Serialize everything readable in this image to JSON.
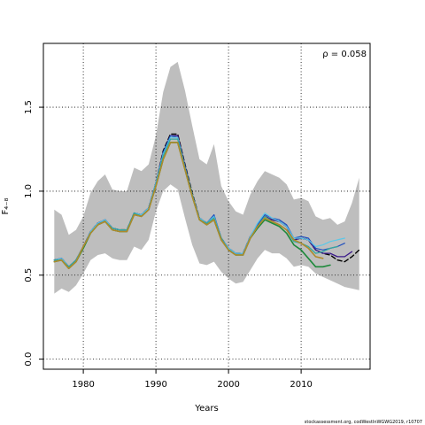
{
  "chart_data": {
    "type": "line",
    "xlabel": "Years",
    "ylabel": "F₄₋₈",
    "annotation": "ρ = 0.058",
    "footnote": "stockassessment.org, codWestInWGWG2019, r10707",
    "xlim": [
      1974.5,
      2019.5
    ],
    "ylim": [
      -0.06,
      1.88
    ],
    "x_ticks": [
      1980,
      1990,
      2000,
      2010
    ],
    "x_tick_labels": [
      "1980",
      "1990",
      "2000",
      "2010"
    ],
    "y_ticks": [
      0.0,
      0.5,
      1.0,
      1.5
    ],
    "y_tick_labels": [
      "0.0",
      "0.5",
      "1.0",
      "1.5"
    ],
    "grid": true,
    "confidence_band": {
      "x": [
        1976,
        1977,
        1978,
        1979,
        1980,
        1981,
        1982,
        1983,
        1984,
        1985,
        1986,
        1987,
        1988,
        1989,
        1990,
        1991,
        1992,
        1993,
        1994,
        1995,
        1996,
        1997,
        1998,
        1999,
        2000,
        2001,
        2002,
        2003,
        2004,
        2005,
        2006,
        2007,
        2008,
        2009,
        2010,
        2011,
        2012,
        2013,
        2014,
        2015,
        2016,
        2017,
        2018
      ],
      "upper": [
        0.89,
        0.86,
        0.74,
        0.77,
        0.85,
        0.99,
        1.06,
        1.1,
        1.01,
        1.0,
        1.0,
        1.14,
        1.12,
        1.16,
        1.33,
        1.59,
        1.74,
        1.77,
        1.6,
        1.39,
        1.19,
        1.16,
        1.28,
        1.03,
        0.94,
        0.88,
        0.86,
        0.98,
        1.06,
        1.12,
        1.1,
        1.08,
        1.04,
        0.95,
        0.96,
        0.94,
        0.85,
        0.83,
        0.84,
        0.8,
        0.82,
        0.93,
        1.08
      ],
      "lower": [
        0.39,
        0.42,
        0.4,
        0.44,
        0.51,
        0.59,
        0.62,
        0.63,
        0.6,
        0.59,
        0.59,
        0.67,
        0.65,
        0.71,
        0.88,
        1.0,
        1.04,
        1.01,
        0.84,
        0.68,
        0.57,
        0.56,
        0.58,
        0.52,
        0.48,
        0.45,
        0.46,
        0.53,
        0.6,
        0.65,
        0.63,
        0.63,
        0.6,
        0.55,
        0.56,
        0.55,
        0.51,
        0.49,
        0.47,
        0.45,
        0.43,
        0.42,
        0.41
      ]
    },
    "series": [
      {
        "color": "#000000",
        "dash": true,
        "width": 1.4,
        "x": [
          1976,
          1977,
          1978,
          1979,
          1980,
          1981,
          1982,
          1983,
          1984,
          1985,
          1986,
          1987,
          1988,
          1989,
          1990,
          1991,
          1992,
          1993,
          1994,
          1995,
          1996,
          1997,
          1998,
          1999,
          2000,
          2001,
          2002,
          2003,
          2004,
          2005,
          2006,
          2007,
          2008,
          2009,
          2010,
          2011,
          2012,
          2013,
          2014,
          2015,
          2016,
          2017,
          2018
        ],
        "values": [
          0.59,
          0.6,
          0.55,
          0.59,
          0.67,
          0.76,
          0.81,
          0.83,
          0.78,
          0.77,
          0.77,
          0.87,
          0.86,
          0.9,
          1.05,
          1.24,
          1.34,
          1.34,
          1.16,
          0.99,
          0.84,
          0.81,
          0.85,
          0.72,
          0.66,
          0.63,
          0.63,
          0.73,
          0.8,
          0.85,
          0.83,
          0.82,
          0.79,
          0.71,
          0.72,
          0.71,
          0.65,
          0.63,
          0.62,
          0.59,
          0.58,
          0.61,
          0.65
        ]
      },
      {
        "color": "#3b1a8a",
        "dash": false,
        "width": 1.3,
        "x": [
          1976,
          1977,
          1978,
          1979,
          1980,
          1981,
          1982,
          1983,
          1984,
          1985,
          1986,
          1987,
          1988,
          1989,
          1990,
          1991,
          1992,
          1993,
          1994,
          1995,
          1996,
          1997,
          1998,
          1999,
          2000,
          2001,
          2002,
          2003,
          2004,
          2005,
          2006,
          2007,
          2008,
          2009,
          2010,
          2011,
          2012,
          2013,
          2014,
          2015,
          2016,
          2017
        ],
        "values": [
          0.59,
          0.6,
          0.55,
          0.59,
          0.67,
          0.76,
          0.81,
          0.83,
          0.78,
          0.77,
          0.77,
          0.87,
          0.86,
          0.9,
          1.05,
          1.23,
          1.33,
          1.33,
          1.15,
          0.98,
          0.84,
          0.81,
          0.85,
          0.72,
          0.66,
          0.63,
          0.63,
          0.73,
          0.8,
          0.85,
          0.83,
          0.82,
          0.79,
          0.71,
          0.72,
          0.71,
          0.65,
          0.63,
          0.63,
          0.61,
          0.61,
          0.64
        ]
      },
      {
        "color": "#1f4fbf",
        "dash": false,
        "width": 1.2,
        "x": [
          1976,
          1977,
          1978,
          1979,
          1980,
          1981,
          1982,
          1983,
          1984,
          1985,
          1986,
          1987,
          1988,
          1989,
          1990,
          1991,
          1992,
          1993,
          1994,
          1995,
          1996,
          1997,
          1998,
          1999,
          2000,
          2001,
          2002,
          2003,
          2004,
          2005,
          2006,
          2007,
          2008,
          2009,
          2010,
          2011,
          2012,
          2013,
          2014,
          2015,
          2016
        ],
        "values": [
          0.59,
          0.6,
          0.55,
          0.59,
          0.67,
          0.76,
          0.81,
          0.83,
          0.78,
          0.77,
          0.77,
          0.87,
          0.86,
          0.9,
          1.05,
          1.23,
          1.33,
          1.32,
          1.15,
          0.98,
          0.84,
          0.81,
          0.86,
          0.72,
          0.66,
          0.63,
          0.63,
          0.73,
          0.8,
          0.86,
          0.84,
          0.83,
          0.8,
          0.72,
          0.73,
          0.72,
          0.66,
          0.65,
          0.66,
          0.67,
          0.69
        ]
      },
      {
        "color": "#5bc8e8",
        "dash": false,
        "width": 1.2,
        "x": [
          1976,
          1977,
          1978,
          1979,
          1980,
          1981,
          1982,
          1983,
          1984,
          1985,
          1986,
          1987,
          1988,
          1989,
          1990,
          1991,
          1992,
          1993,
          1994,
          1995,
          1996,
          1997,
          1998,
          1999,
          2000,
          2001,
          2002,
          2003,
          2004,
          2005,
          2006,
          2007,
          2008,
          2009,
          2010,
          2011,
          2012,
          2013,
          2014,
          2015,
          2016
        ],
        "values": [
          0.59,
          0.6,
          0.55,
          0.59,
          0.67,
          0.76,
          0.81,
          0.83,
          0.78,
          0.77,
          0.77,
          0.87,
          0.86,
          0.9,
          1.05,
          1.22,
          1.32,
          1.32,
          1.14,
          0.98,
          0.84,
          0.81,
          0.85,
          0.72,
          0.66,
          0.63,
          0.63,
          0.73,
          0.81,
          0.87,
          0.84,
          0.82,
          0.79,
          0.72,
          0.72,
          0.71,
          0.67,
          0.68,
          0.7,
          0.71,
          0.72
        ]
      },
      {
        "color": "#35a8a0",
        "dash": false,
        "width": 1.3,
        "x": [
          1976,
          1977,
          1978,
          1979,
          1980,
          1981,
          1982,
          1983,
          1984,
          1985,
          1986,
          1987,
          1988,
          1989,
          1990,
          1991,
          1992,
          1993,
          1994,
          1995,
          1996,
          1997,
          1998,
          1999,
          2000,
          2001,
          2002,
          2003,
          2004,
          2005,
          2006,
          2007,
          2008,
          2009,
          2010,
          2011,
          2012,
          2013,
          2014,
          2015
        ],
        "values": [
          0.59,
          0.59,
          0.55,
          0.59,
          0.67,
          0.75,
          0.8,
          0.82,
          0.78,
          0.77,
          0.77,
          0.87,
          0.85,
          0.89,
          1.04,
          1.21,
          1.31,
          1.31,
          1.14,
          0.98,
          0.83,
          0.81,
          0.84,
          0.72,
          0.65,
          0.62,
          0.62,
          0.72,
          0.79,
          0.85,
          0.82,
          0.8,
          0.77,
          0.7,
          0.69,
          0.67,
          0.63,
          0.64,
          0.66,
          0.67
        ]
      },
      {
        "color": "#1e8a3c",
        "dash": false,
        "width": 1.6,
        "x": [
          1976,
          1977,
          1978,
          1979,
          1980,
          1981,
          1982,
          1983,
          1984,
          1985,
          1986,
          1987,
          1988,
          1989,
          1990,
          1991,
          1992,
          1993,
          1994,
          1995,
          1996,
          1997,
          1998,
          1999,
          2000,
          2001,
          2002,
          2003,
          2004,
          2005,
          2006,
          2007,
          2008,
          2009,
          2010,
          2011,
          2012,
          2013,
          2014
        ],
        "values": [
          0.58,
          0.59,
          0.54,
          0.58,
          0.66,
          0.75,
          0.8,
          0.82,
          0.77,
          0.76,
          0.76,
          0.86,
          0.85,
          0.89,
          1.03,
          1.19,
          1.29,
          1.29,
          1.13,
          0.97,
          0.83,
          0.8,
          0.83,
          0.71,
          0.65,
          0.62,
          0.62,
          0.72,
          0.78,
          0.83,
          0.81,
          0.79,
          0.75,
          0.68,
          0.65,
          0.6,
          0.55,
          0.55,
          0.56
        ]
      },
      {
        "color": "#b08a2a",
        "dash": false,
        "width": 1.6,
        "x": [
          1976,
          1977,
          1978,
          1979,
          1980,
          1981,
          1982,
          1983,
          1984,
          1985,
          1986,
          1987,
          1988,
          1989,
          1990,
          1991,
          1992,
          1993,
          1994,
          1995,
          1996,
          1997,
          1998,
          1999,
          2000,
          2001,
          2002,
          2003,
          2004,
          2005,
          2006,
          2007,
          2008,
          2009,
          2010,
          2011,
          2012,
          2013
        ],
        "values": [
          0.58,
          0.59,
          0.54,
          0.58,
          0.67,
          0.75,
          0.8,
          0.82,
          0.77,
          0.76,
          0.76,
          0.86,
          0.85,
          0.89,
          1.03,
          1.19,
          1.29,
          1.29,
          1.13,
          0.97,
          0.83,
          0.8,
          0.83,
          0.71,
          0.65,
          0.62,
          0.62,
          0.72,
          0.79,
          0.84,
          0.82,
          0.8,
          0.77,
          0.71,
          0.69,
          0.66,
          0.61,
          0.6
        ]
      }
    ]
  }
}
